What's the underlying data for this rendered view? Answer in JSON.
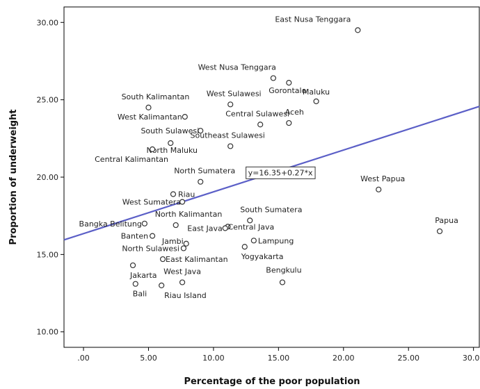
{
  "chart_data": {
    "type": "scatter",
    "xlabel": "Percentage of the poor population",
    "ylabel": "Proportion of underweight",
    "xlim": [
      -1.5,
      30.5
    ],
    "ylim": [
      9,
      31
    ],
    "x_ticks": [
      0,
      5,
      10,
      15,
      20,
      25,
      30
    ],
    "x_tick_labels": [
      ".00",
      "5.00",
      "10.00",
      "15.00",
      "20.00",
      "25.00",
      "30.00"
    ],
    "y_ticks": [
      10,
      15,
      20,
      25,
      30
    ],
    "y_tick_labels": [
      "10.00",
      "15.00",
      "20.00",
      "25.00",
      "30.00"
    ],
    "grid": false,
    "marker_color": "#333333",
    "fit_line": {
      "intercept": 16.35,
      "slope": 0.27,
      "color": "#5b5fc7",
      "label": "y=16.35+0.27*x"
    },
    "points": [
      {
        "name": "East Nusa Tenggara",
        "x": 21.1,
        "y": 29.5
      },
      {
        "name": "West Nusa Tenggara",
        "x": 14.6,
        "y": 26.4
      },
      {
        "name": "Gorontalo",
        "x": 15.8,
        "y": 26.1
      },
      {
        "name": "Maluku",
        "x": 17.9,
        "y": 24.9
      },
      {
        "name": "South Kalimantan",
        "x": 5.0,
        "y": 24.5
      },
      {
        "name": "West Sulawesi",
        "x": 11.3,
        "y": 24.7
      },
      {
        "name": "West Kalimantan",
        "x": 7.8,
        "y": 23.9
      },
      {
        "name": "Central Sulawesi",
        "x": 13.6,
        "y": 23.4
      },
      {
        "name": "Aceh",
        "x": 15.8,
        "y": 23.5
      },
      {
        "name": "South Sulawesi",
        "x": 9.0,
        "y": 23.0
      },
      {
        "name": "North Maluku",
        "x": 6.7,
        "y": 22.2
      },
      {
        "name": "Southeast Sulawesi",
        "x": 11.3,
        "y": 22.0
      },
      {
        "name": "Central Kalimantan",
        "x": 5.3,
        "y": 21.8
      },
      {
        "name": "North Sumatera",
        "x": 9.0,
        "y": 19.7
      },
      {
        "name": "West Papua",
        "x": 22.7,
        "y": 19.2
      },
      {
        "name": "Riau",
        "x": 6.9,
        "y": 18.9
      },
      {
        "name": "West Sumatera",
        "x": 7.6,
        "y": 18.4
      },
      {
        "name": "South Sumatera",
        "x": 12.8,
        "y": 17.2
      },
      {
        "name": "North Kalimantan",
        "x": 7.1,
        "y": 16.9
      },
      {
        "name": "Bangka Belitung",
        "x": 4.7,
        "y": 17.0
      },
      {
        "name": "Central Java",
        "x": 11.1,
        "y": 16.8
      },
      {
        "name": "East Java",
        "x": 10.9,
        "y": 16.7
      },
      {
        "name": "Papua",
        "x": 27.4,
        "y": 16.5
      },
      {
        "name": "Banten",
        "x": 5.3,
        "y": 16.2
      },
      {
        "name": "Jambi",
        "x": 7.9,
        "y": 15.7
      },
      {
        "name": "Lampung",
        "x": 13.1,
        "y": 15.9
      },
      {
        "name": "North Sulawesi",
        "x": 7.7,
        "y": 15.4
      },
      {
        "name": "Yogyakarta",
        "x": 12.4,
        "y": 15.5
      },
      {
        "name": "East Kalimantan",
        "x": 6.1,
        "y": 14.7
      },
      {
        "name": "Jakarta",
        "x": 3.8,
        "y": 14.3
      },
      {
        "name": "West Java",
        "x": 7.6,
        "y": 13.2
      },
      {
        "name": "Bengkulu",
        "x": 15.3,
        "y": 13.2
      },
      {
        "name": "Bali",
        "x": 4.0,
        "y": 13.1
      },
      {
        "name": "Riau Island",
        "x": 6.0,
        "y": 13.0
      }
    ]
  }
}
